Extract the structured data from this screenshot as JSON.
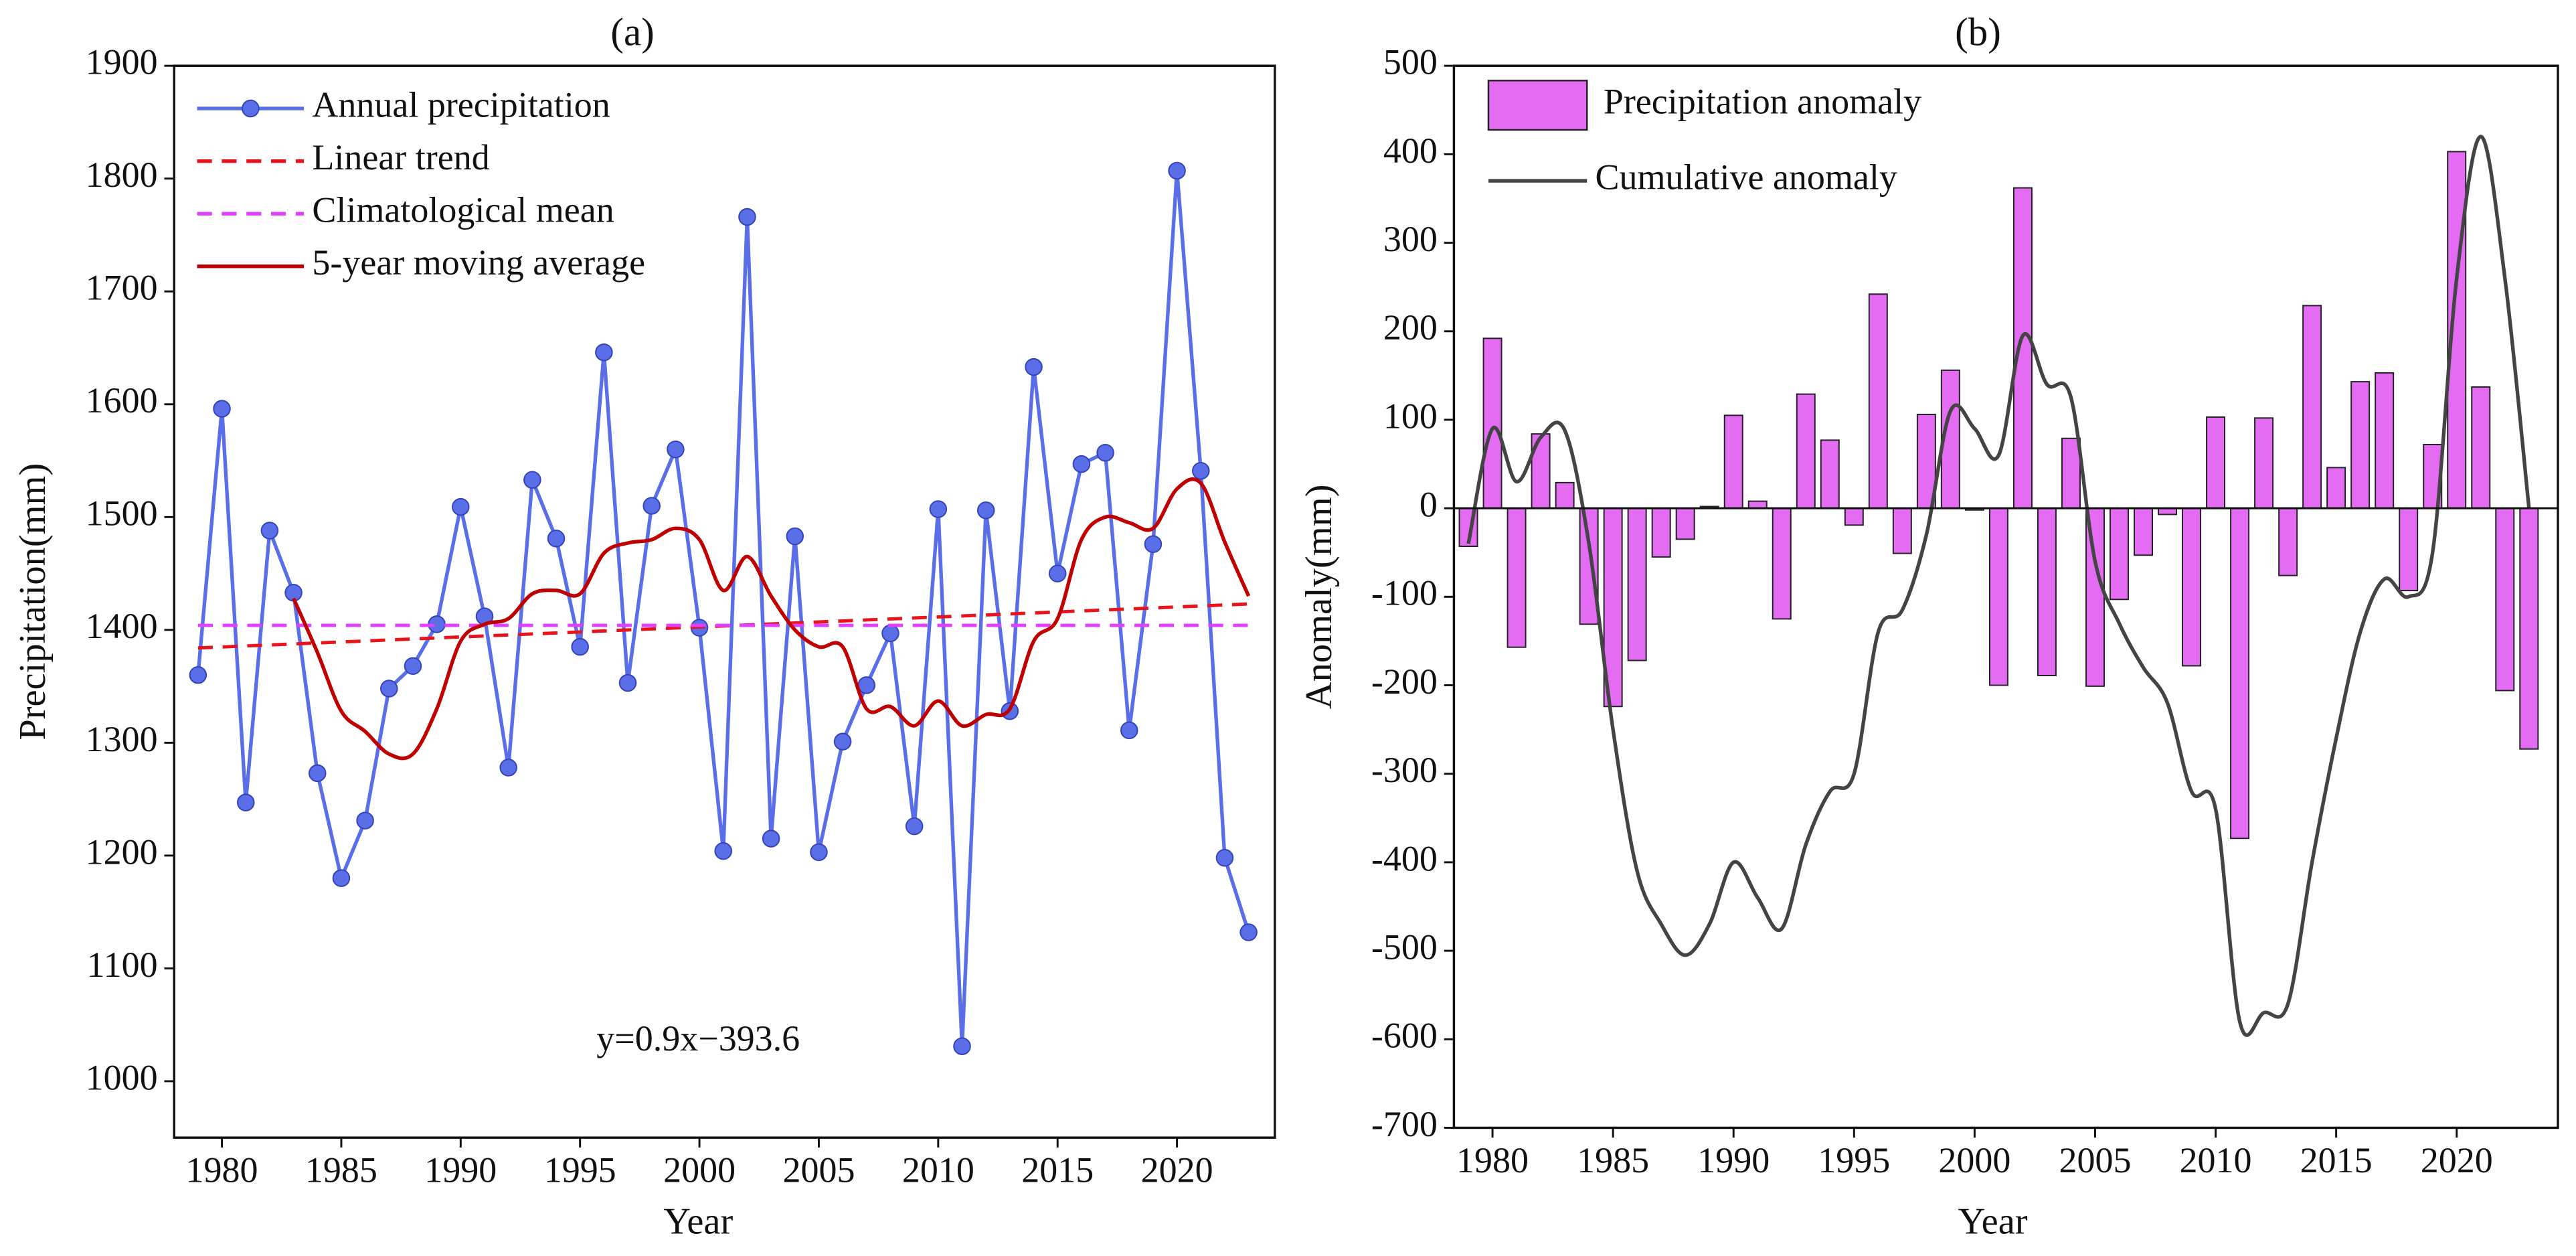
{
  "chart_data": [
    {
      "type": "line",
      "title": "(a)",
      "x_label": "Year",
      "y_label": "Precipitation(mm)",
      "x": [
        1979,
        1980,
        1981,
        1982,
        1983,
        1984,
        1985,
        1986,
        1987,
        1988,
        1989,
        1990,
        1991,
        1992,
        1993,
        1994,
        1995,
        1996,
        1997,
        1998,
        1999,
        2000,
        2001,
        2002,
        2003,
        2004,
        2005,
        2006,
        2007,
        2008,
        2009,
        2010,
        2011,
        2012,
        2013,
        2014,
        2015,
        2016,
        2017,
        2018,
        2019,
        2020,
        2021,
        2022,
        2023
      ],
      "series": [
        {
          "name": "Annual precipitation",
          "color": "#5a6ee8",
          "markers": true,
          "values": [
            1360,
            1596,
            1247,
            1488,
            1433,
            1273,
            1180,
            1231,
            1348,
            1368,
            1405,
            1509,
            1412,
            1278,
            1533,
            1481,
            1385,
            1646,
            1353,
            1510,
            1560,
            1402,
            1204,
            1766,
            1215,
            1483,
            1203,
            1301,
            1351,
            1397,
            1226,
            1507,
            1031,
            1506,
            1328,
            1633,
            1450,
            1547,
            1557,
            1311,
            1476,
            1807,
            1541,
            1198,
            1132
          ]
        },
        {
          "name": "Linear trend",
          "color": "#e8141c",
          "dash": true,
          "x": [
            1979,
            2023
          ],
          "values": [
            1384,
            1423
          ]
        },
        {
          "name": "Climatological mean",
          "color": "#e040fb",
          "dash": true,
          "x": [
            1979,
            2023
          ],
          "values": [
            1404,
            1404
          ]
        },
        {
          "name": "5-year moving average",
          "color": "#c00000",
          "smooth": true,
          "x": [
            1983,
            1984,
            1985,
            1986,
            1987,
            1988,
            1989,
            1990,
            1991,
            1992,
            1993,
            1994,
            1995,
            1996,
            1997,
            1998,
            1999,
            2000,
            2001,
            2002,
            2003,
            2004,
            2005,
            2006,
            2007,
            2008,
            2009,
            2010,
            2011,
            2012,
            2013,
            2014,
            2015,
            2016,
            2017,
            2018,
            2019,
            2020,
            2021,
            2022,
            2023
          ],
          "values": [
            1428,
            1380,
            1328,
            1310,
            1290,
            1290,
            1330,
            1390,
            1405,
            1410,
            1432,
            1435,
            1432,
            1468,
            1477,
            1480,
            1490,
            1480,
            1435,
            1465,
            1430,
            1400,
            1385,
            1385,
            1330,
            1332,
            1315,
            1337,
            1315,
            1325,
            1330,
            1390,
            1410,
            1480,
            1500,
            1495,
            1490,
            1525,
            1530,
            1478,
            1430
          ]
        }
      ],
      "annotation": "y=0.9x−393.6",
      "xlim": [
        1978,
        2024.1
      ],
      "xticks": [
        1980,
        1985,
        1990,
        1995,
        2000,
        2005,
        2010,
        2015,
        2020
      ],
      "ylim": [
        950,
        1900
      ],
      "yticks": [
        1000,
        1100,
        1200,
        1300,
        1400,
        1500,
        1600,
        1700,
        1800,
        1900
      ]
    },
    {
      "type": "bar",
      "title": "(b)",
      "x_label": "Year",
      "y_label": "Anomaly(mm)",
      "x": [
        1979,
        1980,
        1981,
        1982,
        1983,
        1984,
        1985,
        1986,
        1987,
        1988,
        1989,
        1990,
        1991,
        1992,
        1993,
        1994,
        1995,
        1996,
        1997,
        1998,
        1999,
        2000,
        2001,
        2002,
        2003,
        2004,
        2005,
        2006,
        2007,
        2008,
        2009,
        2010,
        2011,
        2012,
        2013,
        2014,
        2015,
        2016,
        2017,
        2018,
        2019,
        2020,
        2021,
        2022,
        2023
      ],
      "series": [
        {
          "name": "Precipitation anomaly",
          "color": "#e36cf3",
          "values": [
            -43,
            192,
            -157,
            84,
            29,
            -131,
            -224,
            -172,
            -55,
            -35,
            2,
            105,
            8,
            -125,
            129,
            77,
            -19,
            242,
            -51,
            106,
            156,
            -2,
            -200,
            362,
            -189,
            79,
            -201,
            -103,
            -53,
            -7,
            -178,
            103,
            -373,
            102,
            -76,
            229,
            46,
            143,
            153,
            -93,
            72,
            403,
            137,
            -206,
            -272
          ]
        },
        {
          "name": "Cumulative anomaly",
          "color": "#444444",
          "type": "line",
          "smooth": true,
          "values": [
            -40,
            90,
            30,
            80,
            88,
            -40,
            -250,
            -410,
            -470,
            -505,
            -470,
            -400,
            -440,
            -475,
            -380,
            -320,
            -300,
            -140,
            -115,
            -30,
            110,
            90,
            60,
            195,
            140,
            125,
            -60,
            -130,
            -180,
            -220,
            -320,
            -340,
            -580,
            -570,
            -560,
            -400,
            -260,
            -140,
            -80,
            -100,
            -50,
            260,
            420,
            260,
            0
          ]
        }
      ],
      "xlim": [
        1978.4,
        2024.2
      ],
      "xticks": [
        1980,
        1985,
        1990,
        1995,
        2000,
        2005,
        2010,
        2015,
        2020
      ],
      "ylim": [
        -700,
        500
      ],
      "yticks": [
        -700,
        -600,
        -500,
        -400,
        -300,
        -200,
        -100,
        0,
        100,
        200,
        300,
        400,
        500
      ]
    }
  ]
}
